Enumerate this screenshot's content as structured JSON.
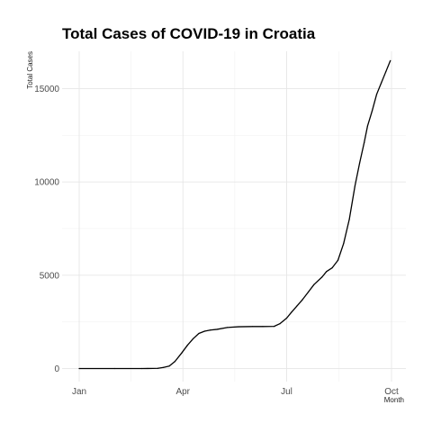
{
  "chart_data": {
    "type": "line",
    "title": "Total Cases of COVID-19 in Croatia",
    "xlabel": "Month",
    "ylabel": "Total Cases",
    "x_ticks": [
      "Jan",
      "Apr",
      "Jul",
      "Oct"
    ],
    "y_ticks": [
      0,
      5000,
      10000,
      15000
    ],
    "ylim": [
      -700,
      17000
    ],
    "grid": true,
    "series": [
      {
        "x": [
          "2020-01-01",
          "2020-02-01",
          "2020-02-25",
          "2020-03-01",
          "2020-03-10",
          "2020-03-15",
          "2020-03-20",
          "2020-03-25",
          "2020-03-31",
          "2020-04-05",
          "2020-04-10",
          "2020-04-15",
          "2020-04-20",
          "2020-04-25",
          "2020-05-01",
          "2020-05-10",
          "2020-05-20",
          "2020-06-01",
          "2020-06-10",
          "2020-06-20",
          "2020-06-25",
          "2020-07-01",
          "2020-07-05",
          "2020-07-10",
          "2020-07-15",
          "2020-07-20",
          "2020-07-25",
          "2020-08-01",
          "2020-08-05",
          "2020-08-10",
          "2020-08-15",
          "2020-08-20",
          "2020-08-25",
          "2020-08-30",
          "2020-09-03",
          "2020-09-07",
          "2020-09-10",
          "2020-09-14",
          "2020-09-18",
          "2020-09-22",
          "2020-09-26",
          "2020-09-30"
        ],
        "y": [
          0,
          0,
          0,
          3,
          12,
          60,
          130,
          380,
          840,
          1250,
          1600,
          1880,
          2000,
          2060,
          2100,
          2200,
          2240,
          2250,
          2250,
          2260,
          2400,
          2700,
          3000,
          3350,
          3700,
          4100,
          4500,
          4900,
          5200,
          5400,
          5800,
          6700,
          8000,
          9800,
          11000,
          12100,
          13000,
          13800,
          14700,
          15300,
          15900,
          16500
        ]
      }
    ]
  }
}
